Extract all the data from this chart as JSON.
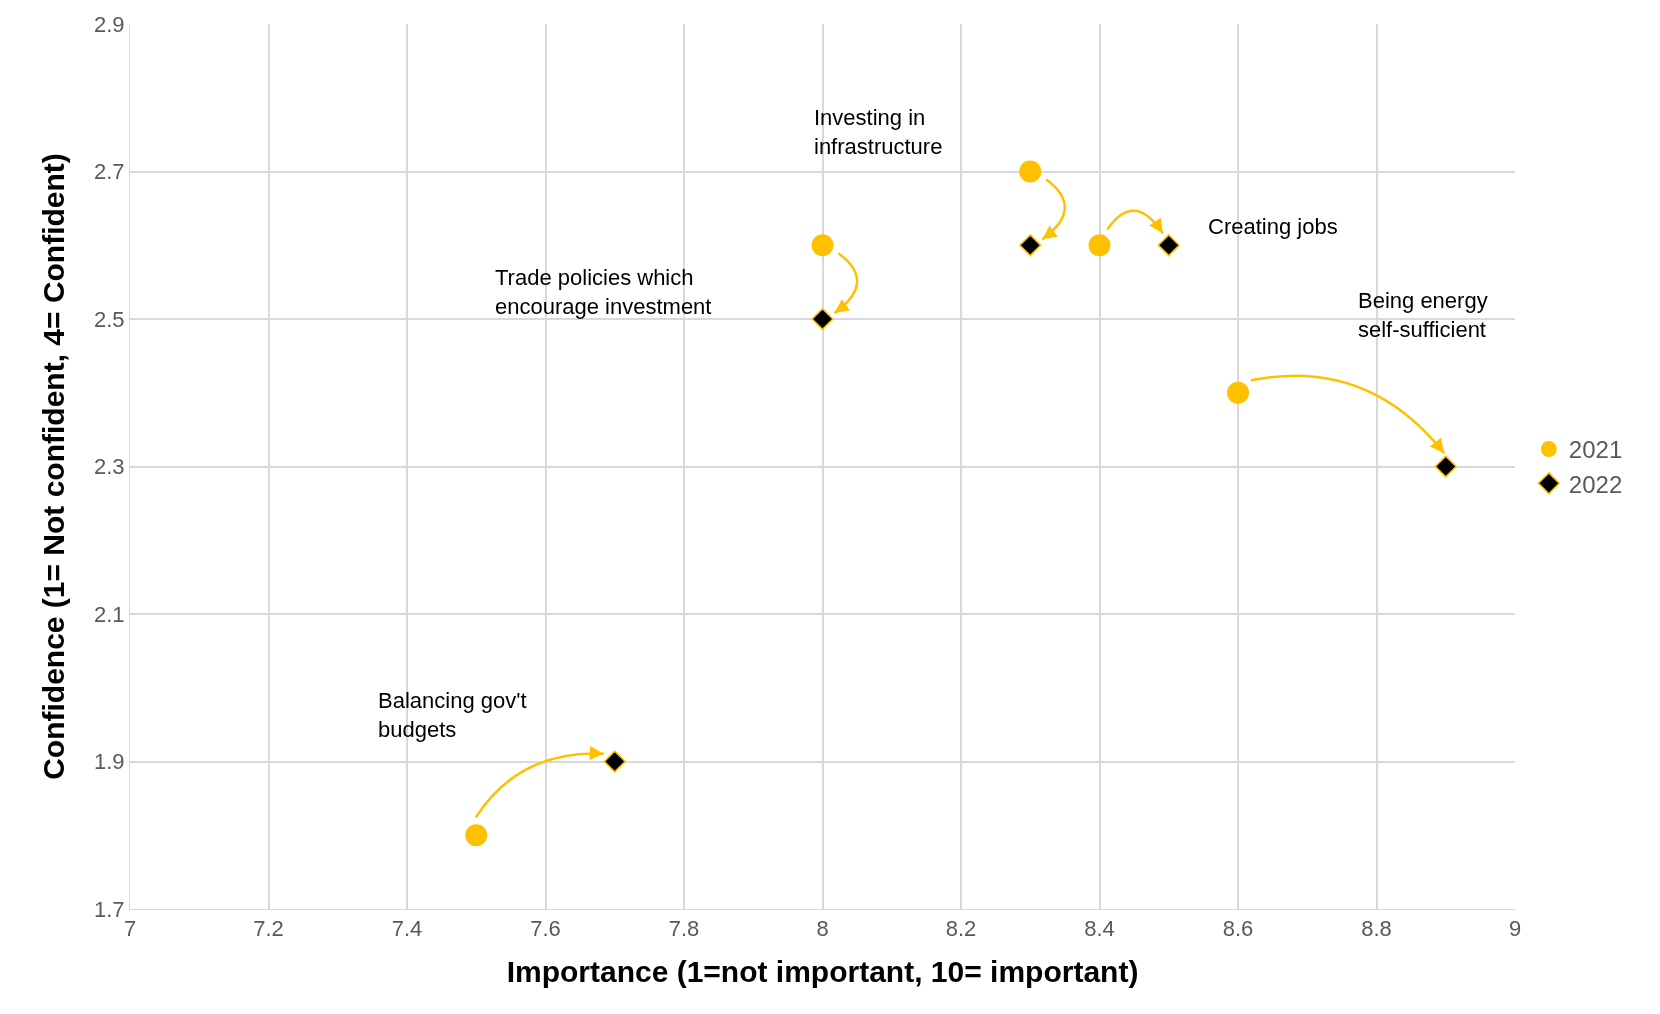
{
  "chart_data": {
    "type": "scatter",
    "xlabel": "Importance (1=not important, 10= important)",
    "ylabel": "Confidence (1= Not confident, 4= Confident)",
    "xlim": [
      7,
      9
    ],
    "xticks": [
      7,
      7.2,
      7.4,
      7.6,
      7.8,
      8,
      8.2,
      8.4,
      8.6,
      8.8,
      9
    ],
    "ylim": [
      1.7,
      2.9
    ],
    "yticks": [
      1.7,
      1.9,
      2.1,
      2.3,
      2.5,
      2.7,
      2.9
    ],
    "grid": true,
    "legend": "right",
    "series": [
      {
        "name": "2021",
        "color": "#ffc000",
        "marker": "circle",
        "x": [
          8.3,
          8.0,
          8.4,
          8.6,
          7.5
        ],
        "values": [
          2.7,
          2.6,
          2.6,
          2.4,
          1.8
        ]
      },
      {
        "name": "2022",
        "color": "#000000",
        "marker": "diamond",
        "x": [
          8.3,
          8.0,
          8.5,
          8.9,
          7.7
        ],
        "values": [
          2.6,
          2.5,
          2.6,
          2.3,
          1.9
        ]
      }
    ],
    "annotations": [
      "Investing in\ninfrastructure",
      "Trade policies which\nencourage investment",
      "Creating jobs",
      "Being energy\nself-sufficient",
      "Balancing gov't\nbudgets"
    ]
  }
}
